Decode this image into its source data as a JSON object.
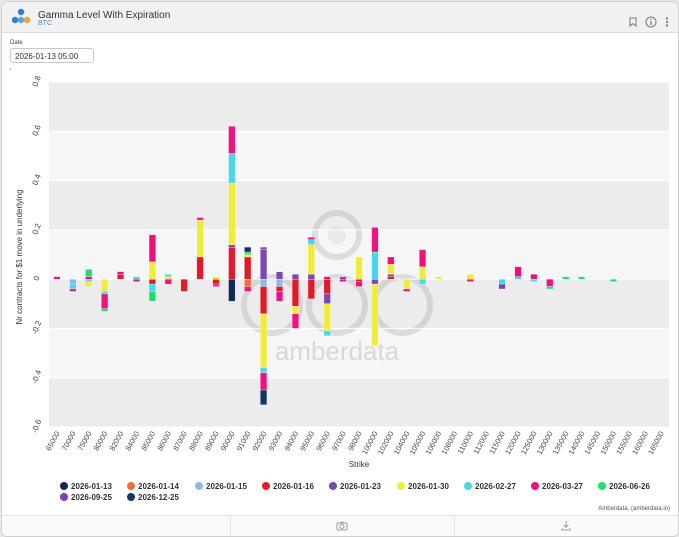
{
  "header": {
    "title": "Gamma Level With Expiration",
    "subtitle": "BTC"
  },
  "controls": {
    "date_label": "Date",
    "date_value": "2026-01-13 05:00",
    "toggle_glyph": "›"
  },
  "footer": {
    "credit": "Amberdata, (amberdata.io)"
  },
  "watermark": "amberdata",
  "icons": [
    "bookmark-icon",
    "info-icon",
    "more-vertical-icon",
    "camera-icon",
    "download-icon"
  ],
  "chart_data": {
    "type": "bar",
    "stacked": true,
    "xlabel": "Strike",
    "ylabel": "Nr contracts for $1 move in underlying",
    "ylim": [
      -0.6,
      0.8
    ],
    "yticks": [
      -0.6,
      -0.4,
      -0.2,
      0,
      0.2,
      0.4,
      0.6,
      0.8
    ],
    "ytick_labels": [
      "-0.6",
      "-0.4",
      "-0.2",
      "0",
      "0.2",
      "0.4",
      "0.6",
      "0.8"
    ],
    "legend_position": "bottom",
    "categories": [
      "65000",
      "70000",
      "75000",
      "80000",
      "82000",
      "84000",
      "85000",
      "86000",
      "87000",
      "88000",
      "89000",
      "90000",
      "91000",
      "92000",
      "93000",
      "94000",
      "95000",
      "96000",
      "97000",
      "98000",
      "100000",
      "102000",
      "104000",
      "105000",
      "106000",
      "108000",
      "110000",
      "112000",
      "115000",
      "120000",
      "125000",
      "130000",
      "135000",
      "140000",
      "145000",
      "150000",
      "155000",
      "160000",
      "165000"
    ],
    "series": [
      {
        "name": "2026-01-13",
        "color": "#0f2a5a",
        "values": [
          0,
          0,
          0,
          0,
          0,
          0,
          0,
          0,
          0,
          0,
          0,
          -0.09,
          0,
          0,
          0,
          0,
          0,
          0,
          0,
          0,
          0,
          0,
          0,
          0,
          0,
          0,
          0,
          0,
          0,
          0,
          0,
          0,
          0,
          0,
          0,
          0,
          0,
          0,
          0
        ]
      },
      {
        "name": "2026-01-14",
        "color": "#f26b3a",
        "values": [
          0,
          0,
          0,
          0,
          0,
          0,
          0,
          0,
          0,
          0,
          0,
          0,
          -0.03,
          0,
          0,
          0,
          0,
          0,
          0,
          0,
          0,
          0,
          0,
          0,
          0,
          0,
          0,
          0,
          0,
          0,
          0,
          0,
          0,
          0,
          0,
          0,
          0,
          0,
          0
        ]
      },
      {
        "name": "2026-01-15",
        "color": "#8fb8ea",
        "values": [
          0,
          -0.02,
          -0.01,
          0,
          0,
          0,
          0,
          0,
          0,
          0,
          0,
          0,
          0,
          -0.03,
          -0.03,
          0,
          0,
          0,
          0,
          0,
          0,
          0,
          0,
          0,
          0,
          0,
          0,
          0,
          0,
          0,
          0,
          0,
          0,
          0,
          0,
          0,
          0,
          0,
          0
        ]
      },
      {
        "name": "2026-01-16",
        "color": "#e01a2b",
        "values": [
          0,
          0,
          0,
          0,
          0.02,
          0,
          -0.02,
          0,
          -0.05,
          0.09,
          -0.02,
          0.13,
          0.09,
          -0.11,
          -0.02,
          -0.11,
          -0.08,
          -0.06,
          0,
          -0.01,
          0,
          0.01,
          0,
          0,
          0,
          0,
          0,
          0,
          0,
          0,
          0,
          0,
          0,
          0,
          0,
          0,
          0,
          0,
          0
        ]
      },
      {
        "name": "2026-01-23",
        "color": "#7a48b0",
        "values": [
          0,
          0,
          0,
          0,
          0,
          0,
          0,
          0,
          0,
          0,
          0,
          0.01,
          0,
          0.12,
          0.03,
          0.02,
          0.02,
          -0.04,
          0.01,
          0,
          -0.02,
          0.01,
          0,
          0,
          0,
          0,
          0,
          0,
          0,
          0,
          0,
          0,
          0,
          0,
          0,
          0,
          0,
          0,
          0
        ]
      },
      {
        "name": "2026-01-30",
        "color": "#f0ec3b",
        "values": [
          0,
          0,
          -0.02,
          -0.05,
          0,
          0,
          0.07,
          0.01,
          0,
          0.15,
          0.01,
          0.25,
          0.01,
          -0.22,
          0,
          -0.03,
          0.12,
          -0.11,
          0,
          0.09,
          -0.25,
          0.04,
          -0.04,
          0.05,
          0.01,
          0,
          0.02,
          0,
          0,
          0,
          0,
          0,
          0,
          0,
          0,
          0,
          0,
          0,
          0
        ]
      },
      {
        "name": "2026-02-27",
        "color": "#47d6ea",
        "values": [
          0,
          -0.02,
          0,
          -0.01,
          0,
          0.01,
          -0.03,
          0.01,
          0,
          0,
          0,
          0.12,
          0,
          -0.02,
          0,
          0,
          0.02,
          -0.02,
          0,
          0,
          0.11,
          0,
          0,
          -0.02,
          0,
          0,
          0,
          0,
          -0.02,
          0.01,
          -0.01,
          0,
          0,
          0,
          0,
          0,
          0,
          0,
          0
        ]
      },
      {
        "name": "2026-03-27",
        "color": "#f0107e",
        "values": [
          0.01,
          -0.01,
          0.01,
          -0.06,
          0.01,
          -0.01,
          0.11,
          -0.02,
          0,
          0.01,
          -0.01,
          0.11,
          -0.02,
          -0.07,
          -0.04,
          -0.06,
          0.01,
          0.01,
          -0.01,
          -0.02,
          0.1,
          0.03,
          -0.01,
          0.07,
          0,
          0,
          -0.01,
          0,
          0,
          0.04,
          0.02,
          -0.03,
          0,
          0,
          0,
          0,
          0,
          0,
          0
        ]
      },
      {
        "name": "2026-06-26",
        "color": "#1ee06a",
        "values": [
          0,
          0,
          0.03,
          -0.01,
          0,
          0,
          -0.04,
          0,
          0,
          0,
          0,
          0,
          0.01,
          0,
          0,
          0,
          0,
          0,
          0,
          0,
          0,
          0,
          0,
          0,
          0,
          0,
          0,
          0,
          0,
          0,
          0,
          -0.01,
          0.01,
          0.01,
          0,
          -0.01,
          0,
          0,
          0
        ]
      },
      {
        "name": "2026-09-25",
        "color": "#7d3fb4",
        "values": [
          0,
          0,
          0,
          0,
          0,
          0,
          0,
          0,
          0,
          0,
          0,
          0,
          0,
          0.01,
          0,
          0,
          0,
          0,
          0,
          0,
          0,
          0,
          0,
          0,
          0,
          0,
          0,
          0,
          -0.02,
          0,
          0,
          0,
          0,
          0,
          0,
          0,
          0,
          0,
          0
        ]
      },
      {
        "name": "2026-12-25",
        "color": "#13365f",
        "values": [
          0,
          0,
          0,
          0,
          0,
          0,
          0,
          0,
          0,
          0,
          0,
          0,
          0.02,
          -0.06,
          0,
          0,
          0,
          0,
          0,
          0,
          0,
          0,
          0,
          0,
          0,
          0,
          0,
          0,
          0,
          0,
          0,
          0,
          0,
          0,
          0,
          0,
          0,
          0,
          0
        ]
      }
    ]
  }
}
